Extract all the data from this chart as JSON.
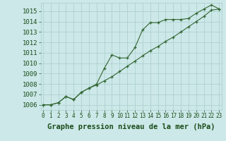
{
  "x": [
    0,
    1,
    2,
    3,
    4,
    5,
    6,
    7,
    8,
    9,
    10,
    11,
    12,
    13,
    14,
    15,
    16,
    17,
    18,
    19,
    20,
    21,
    22,
    23
  ],
  "line1": [
    1006.0,
    1006.0,
    1006.2,
    1006.8,
    1006.5,
    1007.2,
    1007.6,
    1007.9,
    1008.3,
    1008.7,
    1009.2,
    1009.7,
    1010.2,
    1010.7,
    1011.2,
    1011.6,
    1012.1,
    1012.5,
    1013.0,
    1013.5,
    1014.0,
    1014.5,
    1015.1,
    1015.2
  ],
  "line2": [
    1006.0,
    1006.0,
    1006.2,
    1006.8,
    1006.5,
    1007.2,
    1007.6,
    1008.0,
    1009.5,
    1010.8,
    1010.5,
    1010.5,
    1011.5,
    1013.2,
    1013.9,
    1013.9,
    1014.2,
    1014.2,
    1014.2,
    1014.3,
    1014.8,
    1015.2,
    1015.6,
    1015.2
  ],
  "bg_color": "#cce8e8",
  "grid_color": "#aacccc",
  "line_color": "#336633",
  "ylabel_values": [
    1006,
    1007,
    1008,
    1009,
    1010,
    1011,
    1012,
    1013,
    1014,
    1015
  ],
  "xlabel_values": [
    0,
    1,
    2,
    3,
    4,
    5,
    6,
    7,
    8,
    9,
    10,
    11,
    12,
    13,
    14,
    15,
    16,
    17,
    18,
    19,
    20,
    21,
    22,
    23
  ],
  "xlabel": "Graphe pression niveau de la mer (hPa)",
  "ylim": [
    1005.5,
    1015.8
  ],
  "xlim": [
    -0.3,
    23.3
  ],
  "font_color": "#1a4d1a",
  "font_size": 6.5,
  "label_font_size": 7.5
}
